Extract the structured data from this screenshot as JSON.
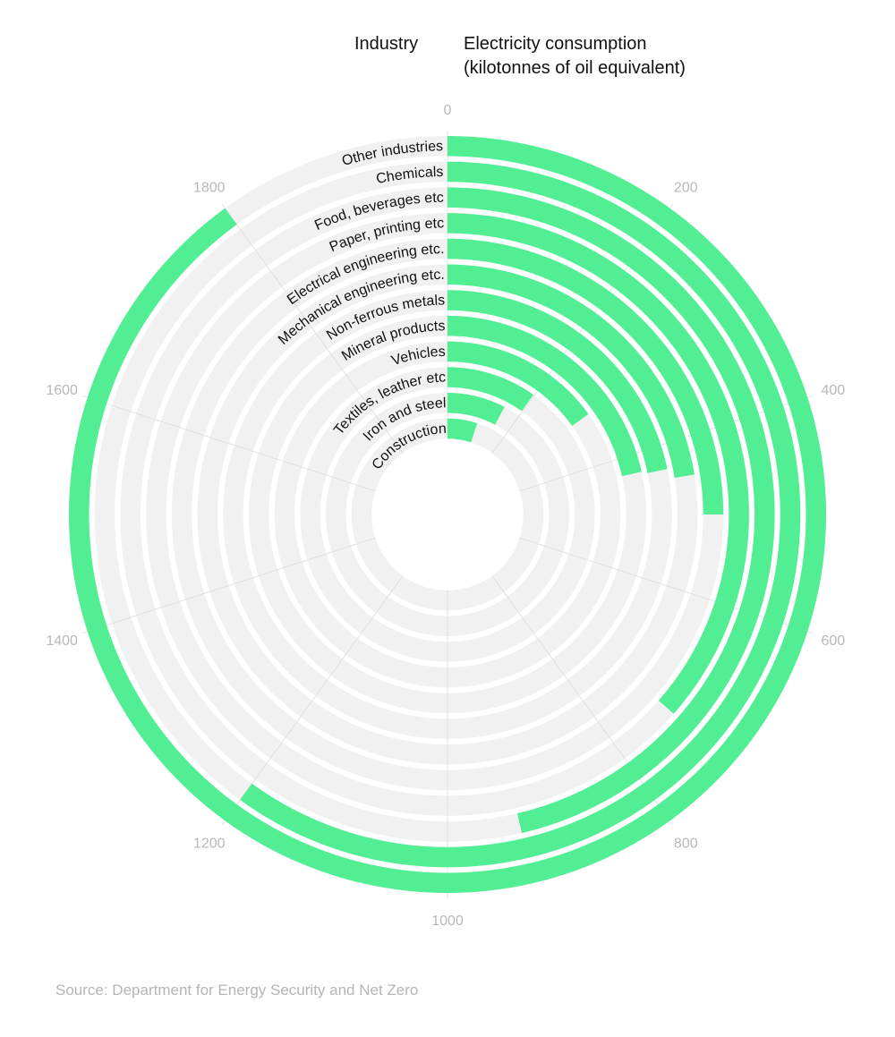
{
  "header": {
    "category_label": "Industry",
    "value_label_line1": "Electricity consumption",
    "value_label_line2": "(kilotonnes of oil equivalent)"
  },
  "source": "Source: Department for Energy Security and Net Zero",
  "colors": {
    "bar": "#52ee94",
    "track": "#f1f1f1",
    "grid": "#dcdcdc",
    "tick_text": "#b8b8b8",
    "label_text": "#111111"
  },
  "chart_data": {
    "type": "bar",
    "subtype": "radial_bar",
    "title": "",
    "xlabel": "Industry",
    "ylabel": "Electricity consumption (kilotonnes of oil equivalent)",
    "ylim": [
      0,
      2000
    ],
    "ticks": [
      0,
      200,
      400,
      600,
      800,
      1000,
      1200,
      1400,
      1600,
      1800
    ],
    "grid": true,
    "legend": "none",
    "categories": [
      "Other industries",
      "Chemicals",
      "Food, beverages etc",
      "Paper, printing etc",
      "Electrical engineering etc.",
      "Mechanical engineering etc.",
      "Non-ferrous metals",
      "Mineral products",
      "Vehicles",
      "Textiles, leather etc",
      "Iron and steel",
      "Construction"
    ],
    "values": [
      1800,
      1200,
      927,
      730,
      500,
      449,
      435,
      431,
      303,
      198,
      155,
      100
    ]
  }
}
